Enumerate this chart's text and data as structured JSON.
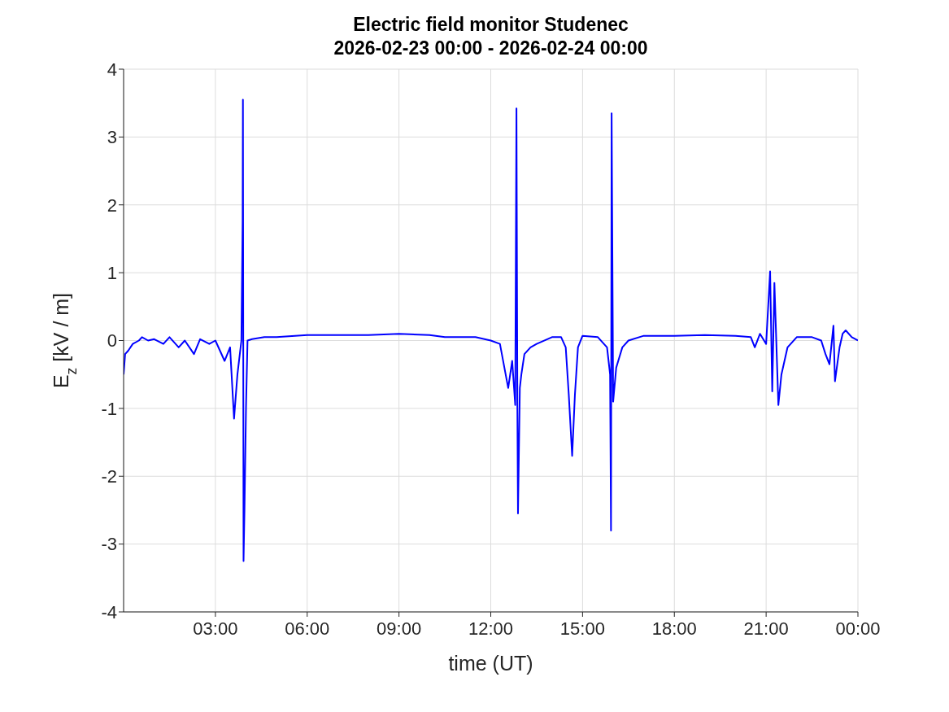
{
  "chart_data": {
    "type": "line",
    "title": "Electric field monitor Studenec",
    "subtitle": "2026-02-23 00:00 - 2026-02-24 00:00",
    "xlabel": "time (UT)",
    "ylabel": "E$_{z}$ [kV / m]",
    "xlim": [
      0,
      24
    ],
    "xticks": [
      {
        "value": 3,
        "label": "03:00"
      },
      {
        "value": 6,
        "label": "06:00"
      },
      {
        "value": 9,
        "label": "09:00"
      },
      {
        "value": 12,
        "label": "12:00"
      },
      {
        "value": 15,
        "label": "15:00"
      },
      {
        "value": 18,
        "label": "18:00"
      },
      {
        "value": 21,
        "label": "21:00"
      },
      {
        "value": 24,
        "label": "00:00"
      }
    ],
    "ylim": [
      -4,
      4
    ],
    "yticks": [
      -4,
      -3,
      -2,
      -1,
      0,
      1,
      2,
      3,
      4
    ],
    "grid": true,
    "legend": false,
    "marker": "none",
    "line_style": "solid",
    "series": [
      {
        "color": "#0000ff",
        "x": [
          0,
          0.05,
          0.15,
          0.3,
          0.5,
          0.6,
          0.8,
          1.0,
          1.3,
          1.5,
          1.8,
          2.0,
          2.3,
          2.5,
          2.8,
          3.0,
          3.3,
          3.48,
          3.61,
          3.72,
          3.85,
          3.89,
          3.9,
          3.92,
          3.95,
          4.0,
          4.05,
          4.2,
          4.6,
          5.0,
          6.0,
          7.0,
          8.0,
          9.0,
          10.0,
          10.5,
          11.5,
          12.0,
          12.3,
          12.57,
          12.7,
          12.8,
          12.84,
          12.87,
          12.89,
          12.95,
          13.0,
          13.1,
          13.3,
          13.5,
          14.0,
          14.3,
          14.45,
          14.55,
          14.66,
          14.75,
          14.85,
          15.0,
          15.5,
          15.8,
          15.9,
          15.93,
          15.95,
          16.0,
          16.1,
          16.3,
          16.5,
          17.0,
          18.0,
          19.0,
          20.0,
          20.5,
          20.63,
          20.8,
          21.0,
          21.13,
          21.2,
          21.27,
          21.4,
          21.5,
          21.7,
          22.0,
          22.5,
          22.8,
          22.94,
          23.07,
          23.2,
          23.25,
          23.4,
          23.5,
          23.6,
          23.8,
          24
        ],
        "values": [
          -0.5,
          -0.2,
          -0.15,
          -0.05,
          0,
          0.05,
          0,
          0.02,
          -0.05,
          0.05,
          -0.1,
          0,
          -0.2,
          0.02,
          -0.05,
          0,
          -0.3,
          -0.1,
          -1.15,
          -0.5,
          0,
          1.75,
          3.55,
          -3.25,
          -2.5,
          -1,
          0,
          0.02,
          0.05,
          0.05,
          0.08,
          0.08,
          0.08,
          0.1,
          0.08,
          0.05,
          0.05,
          0,
          -0.05,
          -0.7,
          -0.3,
          -0.95,
          3.42,
          -1,
          -2.55,
          -0.7,
          -0.5,
          -0.2,
          -0.1,
          -0.05,
          0.05,
          0.05,
          -0.1,
          -0.8,
          -1.7,
          -0.8,
          -0.1,
          0.07,
          0.05,
          -0.1,
          -0.5,
          -2.8,
          3.35,
          -0.9,
          -0.4,
          -0.1,
          0,
          0.07,
          0.07,
          0.08,
          0.07,
          0.05,
          -0.1,
          0.1,
          -0.05,
          1.02,
          -0.75,
          0.85,
          -0.95,
          -0.5,
          -0.1,
          0.05,
          0.05,
          0,
          -0.2,
          -0.35,
          0.22,
          -0.6,
          -0.1,
          0.1,
          0.15,
          0.05,
          0
        ]
      }
    ]
  }
}
